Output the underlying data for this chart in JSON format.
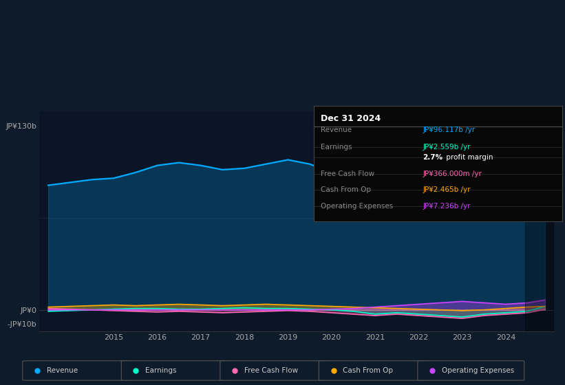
{
  "bg_color": "#0d1b2a",
  "plot_bg": "#0a1628",
  "ytick_top": "JP¥130b",
  "ytick_zero": "JP¥0",
  "ytick_bottom": "-JP¥10b",
  "xticks": [
    2015,
    2016,
    2017,
    2018,
    2019,
    2020,
    2021,
    2022,
    2023,
    2024
  ],
  "ylim_top": 140,
  "ylim_bottom": -15,
  "y_zero": 0,
  "y_130": 130,
  "y_neg10": -10,
  "revenue_color": "#00aaff",
  "earnings_color": "#00ffcc",
  "fcf_color": "#ff69b4",
  "cashfromop_color": "#ffaa00",
  "opex_color": "#cc44ff",
  "info_title": "Dec 31 2024",
  "info_rows": [
    {
      "label": "Revenue",
      "value": "JP¥96.117b /yr",
      "color": "#00aaff"
    },
    {
      "label": "Earnings",
      "value": "JP¥2.559b /yr",
      "color": "#00ffcc"
    },
    {
      "label": "",
      "value": "2.7% profit margin",
      "color": "#ffffff"
    },
    {
      "label": "Free Cash Flow",
      "value": "JP¥366.000m /yr",
      "color": "#ff69b4"
    },
    {
      "label": "Cash From Op",
      "value": "JP¥2.465b /yr",
      "color": "#ffaa00"
    },
    {
      "label": "Operating Expenses",
      "value": "JP¥7.236b /yr",
      "color": "#cc44ff"
    }
  ],
  "legend": [
    {
      "label": "Revenue",
      "color": "#00aaff"
    },
    {
      "label": "Earnings",
      "color": "#00ffcc"
    },
    {
      "label": "Free Cash Flow",
      "color": "#ff69b4"
    },
    {
      "label": "Cash From Op",
      "color": "#ffaa00"
    },
    {
      "label": "Operating Expenses",
      "color": "#cc44ff"
    }
  ],
  "revenue_x": [
    2013.5,
    2014.0,
    2014.5,
    2015.0,
    2015.5,
    2016.0,
    2016.5,
    2017.0,
    2017.5,
    2018.0,
    2018.5,
    2019.0,
    2019.5,
    2020.0,
    2020.5,
    2021.0,
    2021.5,
    2022.0,
    2022.5,
    2023.0,
    2023.5,
    2024.0,
    2024.5,
    2024.9
  ],
  "revenue_y": [
    88,
    90,
    92,
    93,
    97,
    102,
    104,
    102,
    99,
    100,
    103,
    106,
    103,
    97,
    80,
    72,
    75,
    72,
    68,
    75,
    88,
    93,
    92,
    96
  ],
  "earnings_x": [
    2013.5,
    2014.0,
    2014.5,
    2015.0,
    2015.5,
    2016.0,
    2016.5,
    2017.0,
    2017.5,
    2018.0,
    2018.5,
    2019.0,
    2019.5,
    2020.0,
    2020.5,
    2021.0,
    2021.5,
    2022.0,
    2022.5,
    2023.0,
    2023.5,
    2024.0,
    2024.5,
    2024.9
  ],
  "earnings_y": [
    -1,
    -0.5,
    0,
    0.5,
    1,
    1,
    0.5,
    0.5,
    1,
    1.5,
    1,
    1,
    0.5,
    0,
    -1,
    -3,
    -2,
    -3,
    -4,
    -5,
    -3,
    -2,
    -1,
    2.5
  ],
  "fcf_x": [
    2013.5,
    2014.0,
    2014.5,
    2015.0,
    2015.5,
    2016.0,
    2016.5,
    2017.0,
    2017.5,
    2018.0,
    2018.5,
    2019.0,
    2019.5,
    2020.0,
    2020.5,
    2021.0,
    2021.5,
    2022.0,
    2022.5,
    2023.0,
    2023.5,
    2024.0,
    2024.5,
    2024.9
  ],
  "fcf_y": [
    1,
    0.5,
    0,
    -0.5,
    -1,
    -1.5,
    -1,
    -1.5,
    -2,
    -1.5,
    -1,
    -0.5,
    -1,
    -2,
    -3,
    -4,
    -3,
    -4,
    -5,
    -6,
    -4,
    -3,
    -2,
    0.4
  ],
  "cashfromop_x": [
    2013.5,
    2014.0,
    2014.5,
    2015.0,
    2015.5,
    2016.0,
    2016.5,
    2017.0,
    2017.5,
    2018.0,
    2018.5,
    2019.0,
    2019.5,
    2020.0,
    2020.5,
    2021.0,
    2021.5,
    2022.0,
    2022.5,
    2023.0,
    2023.5,
    2024.0,
    2024.5,
    2024.9
  ],
  "cashfromop_y": [
    2,
    2.5,
    3,
    3.5,
    3,
    3.5,
    4,
    3.5,
    3,
    3.5,
    4,
    3.5,
    3,
    2.5,
    2,
    1.5,
    1,
    0.5,
    0,
    -0.5,
    0,
    1,
    2,
    2.5
  ],
  "opex_x": [
    2013.5,
    2014.0,
    2014.5,
    2015.0,
    2015.5,
    2016.0,
    2016.5,
    2017.0,
    2017.5,
    2018.0,
    2018.5,
    2019.0,
    2019.5,
    2020.0,
    2020.5,
    2021.0,
    2021.5,
    2022.0,
    2022.5,
    2023.0,
    2023.5,
    2024.0,
    2024.5,
    2024.9
  ],
  "opex_y": [
    0,
    0,
    0,
    0,
    0,
    0,
    0,
    0,
    0,
    0,
    0,
    0,
    0,
    0.5,
    1,
    2,
    3,
    4,
    5,
    6,
    5,
    4,
    5,
    7
  ],
  "x_min": 2013.3,
  "x_max": 2025.1,
  "stripe_start": 2024.45
}
